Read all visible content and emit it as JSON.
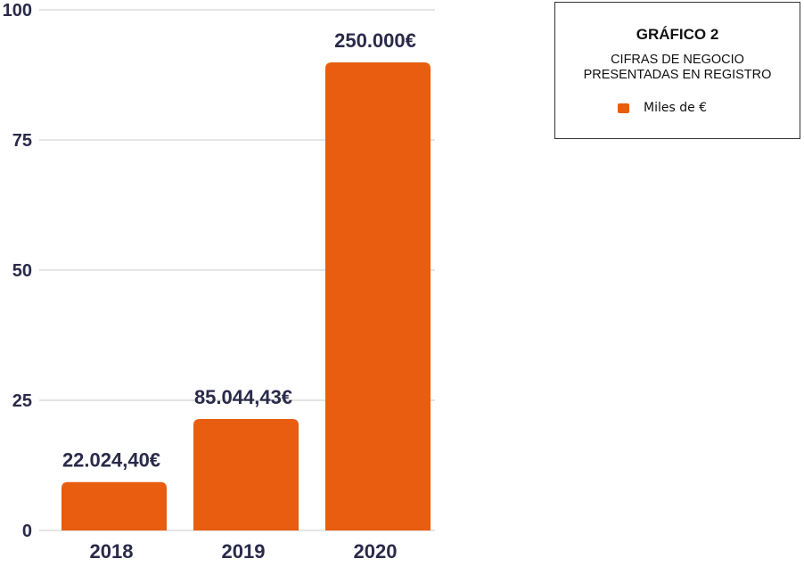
{
  "chart_data": {
    "type": "bar",
    "categories": [
      "2018",
      "2019",
      "2020"
    ],
    "values": [
      9.3,
      21.4,
      89.9
    ],
    "data_labels": [
      "22.024,40€",
      "85.044,43€",
      "250.000€"
    ],
    "ylim": [
      0,
      100
    ],
    "yticks": [
      "0",
      "25",
      "50",
      "75",
      "100"
    ],
    "grid": true,
    "bar_color": "#E85D0F",
    "legend_placement": "top-right"
  },
  "legend": {
    "title": "GRÁFICO 2",
    "subtitle_line1": "CIFRAS DE NEGOCIO",
    "subtitle_line2": "PRESENTADAS EN REGISTRO",
    "series_label": "Miles de €"
  }
}
